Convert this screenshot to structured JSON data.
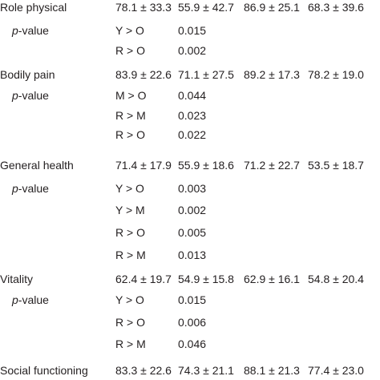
{
  "rows": [
    {
      "label": "Role physical",
      "c1": "78.1 ± 33.3",
      "c2": "55.9 ± 42.7",
      "c3": "86.9 ± 25.1",
      "c4": "68.3 ± 39.6"
    },
    {
      "label_italic": "p",
      "label_rest": "-value",
      "c1": "Y > O",
      "c2": "0.015"
    },
    {
      "c1": "R > O",
      "c2": "0.002"
    },
    {
      "label": "Bodily pain",
      "c1": "83.9 ± 22.6",
      "c2": "71.1 ± 27.5",
      "c3": "89.2 ± 17.3",
      "c4": "78.2 ± 19.0"
    },
    {
      "label_italic": "p",
      "label_rest": "-value",
      "c1": "M > O",
      "c2": "0.044"
    },
    {
      "c1": "R > M",
      "c2": "0.023"
    },
    {
      "c1": "R > O",
      "c2": "0.022"
    },
    {
      "label": "General health",
      "c1": "71.4 ± 17.9",
      "c2": "55.9 ± 18.6",
      "c3": "71.2 ± 22.7",
      "c4": "53.5 ± 18.7"
    },
    {
      "label_italic": "p",
      "label_rest": "-value",
      "c1": "Y > O",
      "c2": "0.003"
    },
    {
      "c1": "Y > M",
      "c2": "0.002"
    },
    {
      "c1": "R > O",
      "c2": "0.005"
    },
    {
      "c1": "R > M",
      "c2": "0.013"
    },
    {
      "label": "Vitality",
      "c1": "62.4 ± 19.7",
      "c2": "54.9 ± 15.8",
      "c3": "62.9 ± 16.1",
      "c4": "54.8 ± 20.4"
    },
    {
      "label_italic": "p",
      "label_rest": "-value",
      "c1": "Y > O",
      "c2": "0.015"
    },
    {
      "c1": "R > O",
      "c2": "0.006"
    },
    {
      "c1": "R > M",
      "c2": "0.046"
    },
    {
      "label": "Social functioning",
      "c1": "83.3 ± 22.6",
      "c2": "74.3 ± 21.1",
      "c3": "88.1 ± 21.3",
      "c4": "77.4 ± 23.0"
    }
  ]
}
